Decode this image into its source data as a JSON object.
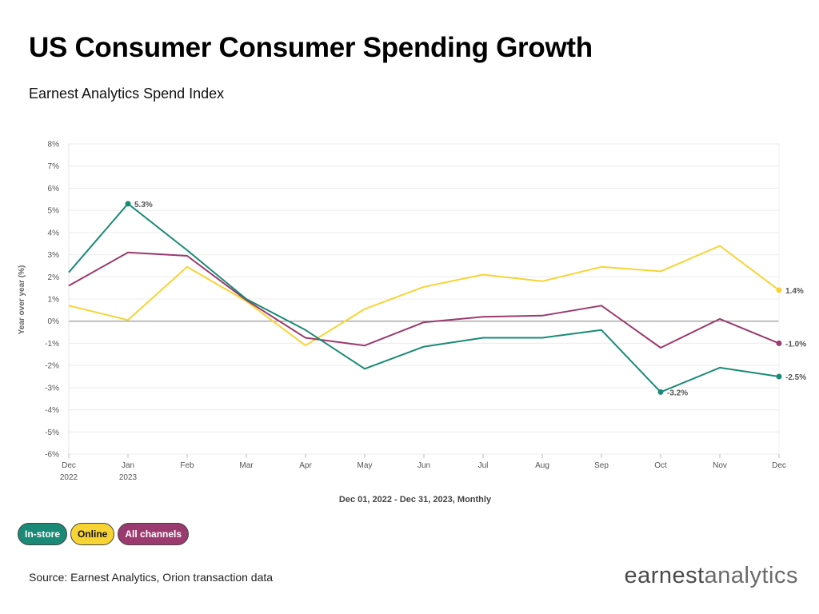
{
  "chart_data": {
    "type": "line",
    "title": "US Consumer Consumer Spending Growth",
    "subtitle": "Earnest Analytics Spend Index",
    "ylabel": "Year over year (%)",
    "xlabel": "Dec 01, 2022 - Dec 31, 2023, Monthly",
    "ylim": [
      -6,
      8
    ],
    "yticks": [
      "8%",
      "7%",
      "6%",
      "5%",
      "4%",
      "3%",
      "2%",
      "1%",
      "0%",
      "-1%",
      "-2%",
      "-3%",
      "-4%",
      "-5%",
      "-6%"
    ],
    "categories": [
      "Dec 2022",
      "Jan 2023",
      "Feb",
      "Mar",
      "Apr",
      "May",
      "Jun",
      "Jul",
      "Aug",
      "Sep",
      "Oct",
      "Nov",
      "Dec"
    ],
    "x_tick_labels": [
      {
        "line1": "Dec",
        "line2": "2022"
      },
      {
        "line1": "Jan",
        "line2": "2023"
      },
      {
        "line1": "Feb",
        "line2": ""
      },
      {
        "line1": "Mar",
        "line2": ""
      },
      {
        "line1": "Apr",
        "line2": ""
      },
      {
        "line1": "May",
        "line2": ""
      },
      {
        "line1": "Jun",
        "line2": ""
      },
      {
        "line1": "Jul",
        "line2": ""
      },
      {
        "line1": "Aug",
        "line2": ""
      },
      {
        "line1": "Sep",
        "line2": ""
      },
      {
        "line1": "Oct",
        "line2": ""
      },
      {
        "line1": "Nov",
        "line2": ""
      },
      {
        "line1": "Dec",
        "line2": ""
      }
    ],
    "series": [
      {
        "name": "In-store",
        "color": "#1a8a76",
        "values": [
          2.2,
          5.3,
          3.2,
          1.0,
          -0.4,
          -2.15,
          -1.15,
          -0.75,
          -0.75,
          -0.4,
          -3.2,
          -2.1,
          -2.5
        ]
      },
      {
        "name": "Online",
        "color": "#f7d433",
        "values": [
          0.7,
          0.05,
          2.45,
          0.9,
          -1.1,
          0.55,
          1.55,
          2.1,
          1.8,
          2.45,
          2.25,
          3.4,
          1.4
        ]
      },
      {
        "name": "All channels",
        "color": "#9b3a6e",
        "values": [
          1.6,
          3.1,
          2.95,
          0.95,
          -0.75,
          -1.1,
          -0.05,
          0.2,
          0.25,
          0.7,
          -1.2,
          0.1,
          -1.0
        ]
      }
    ],
    "annotations": [
      {
        "series": 0,
        "index": 1,
        "text": "5.3%"
      },
      {
        "series": 0,
        "index": 10,
        "text": "-3.2%"
      },
      {
        "series": 1,
        "index": 12,
        "text": "1.4%"
      },
      {
        "series": 2,
        "index": 12,
        "text": "-1.0%"
      },
      {
        "series": 0,
        "index": 12,
        "text": "-2.5%"
      }
    ],
    "grid": true,
    "legend_position": "bottom-left"
  },
  "legend": {
    "items": [
      {
        "label": "In-store",
        "color": "#1a8a76",
        "text_color": "#ffffff"
      },
      {
        "label": "Online",
        "color": "#f7d433",
        "text_color": "#111111"
      },
      {
        "label": "All channels",
        "color": "#9b3a6e",
        "text_color": "#ffffff"
      }
    ]
  },
  "footer": {
    "source": "Source: Earnest Analytics, Orion transaction data",
    "logo_part1": "earnest",
    "logo_part2": "analytics"
  }
}
